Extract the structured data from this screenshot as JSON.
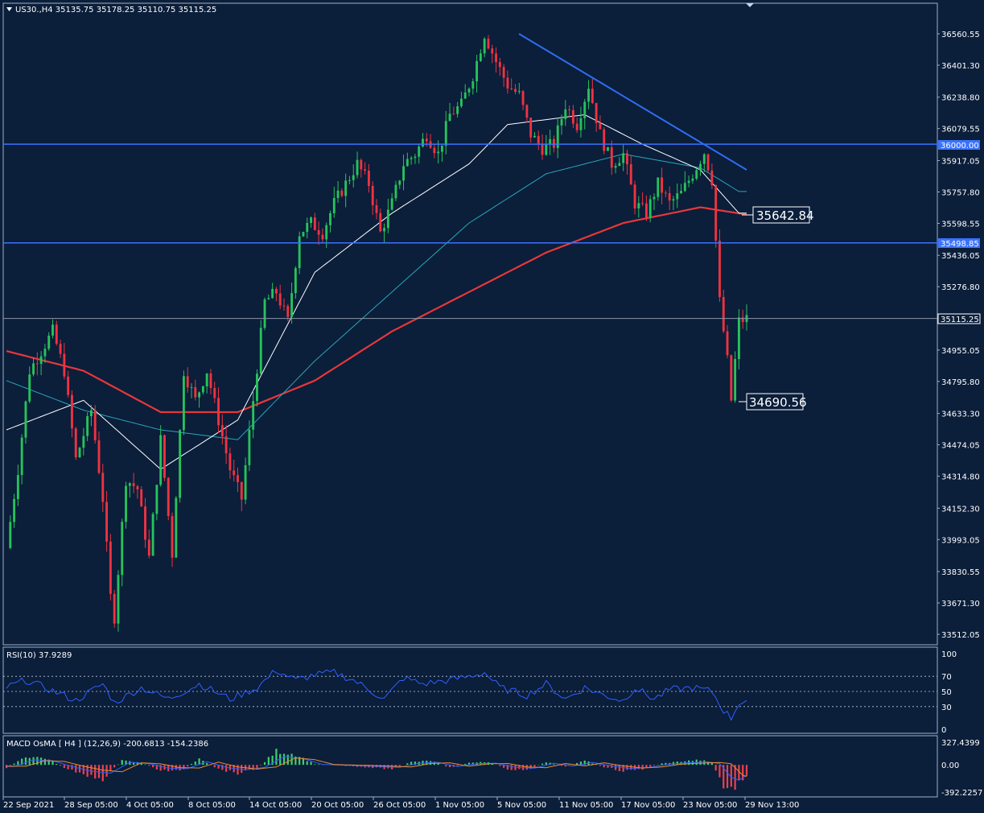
{
  "symbol_header": "US30.,H4  35135.75 35178.25 35110.75 35115.25",
  "colors": {
    "background": "#0b1e3a",
    "axis_text": "#ffffff",
    "candle_up": "#26c35b",
    "candle_down": "#ef3340",
    "trendline": "#2f6cf0",
    "horizontal_line": "#3a72ff",
    "ma_fast": "#ffffff",
    "ma_mid": "#2aa6b8",
    "ma_slow": "#e8373a",
    "rsi_line": "#2f5fff",
    "macd_pos": "#3fd06a",
    "macd_neg": "#f0404c",
    "macd_line": "#2f5fff",
    "signal_line": "#f08a2c"
  },
  "price_axis_labels": [
    "36560.55",
    "36401.30",
    "36238.80",
    "36079.55",
    "35917.05",
    "35757.80",
    "35598.55",
    "35436.05",
    "35276.80",
    "35115.25",
    "34955.05",
    "34795.80",
    "34633.30",
    "34474.05",
    "34314.80",
    "34152.30",
    "33993.05",
    "33830.55",
    "33671.30",
    "33512.05"
  ],
  "level_labels": {
    "resistance": "36000.00",
    "support": "35498.85",
    "current": "35115.25",
    "ma_value": "35642.84",
    "low_value": "34690.56"
  },
  "rsi": {
    "label": "RSI(10) 37.9289",
    "levels": [
      "100",
      "70",
      "50",
      "30",
      "0"
    ]
  },
  "macd": {
    "label": "MACD OsMA [ H4 ] (12,26,9) -200.6813 -154.2386",
    "axis_labels": [
      "327.4399",
      "0.00",
      "-392.2257"
    ]
  },
  "time_axis_labels": [
    "22 Sep 2021",
    "28 Sep 05:00",
    "4 Oct 05:00",
    "8 Oct 05:00",
    "14 Oct 05:00",
    "20 Oct 05:00",
    "26 Oct 05:00",
    "1 Nov 05:00",
    "5 Nov 05:00",
    "11 Nov 05:00",
    "17 Nov 05:00",
    "23 Nov 05:00",
    "29 Nov 13:00"
  ],
  "chart_data": {
    "type": "candlestick",
    "title": "US30.,H4",
    "ylim": [
      33450,
      36700
    ],
    "horizontal_levels": [
      36000.0,
      35498.85,
      35115.25
    ],
    "annotations": [
      {
        "text": "35642.84",
        "value": 35642.84
      },
      {
        "text": "34690.56",
        "value": 34690.56
      }
    ],
    "trendline": {
      "from": {
        "x": "5 Nov 05:00",
        "y": 36560
      },
      "to": {
        "x": "26 Nov",
        "y": 35860
      }
    },
    "price_path": [
      [
        0,
        33950
      ],
      [
        3,
        34350
      ],
      [
        6,
        34850
      ],
      [
        9,
        34950
      ],
      [
        12,
        35050
      ],
      [
        15,
        34850
      ],
      [
        18,
        34400
      ],
      [
        22,
        34650
      ],
      [
        25,
        34200
      ],
      [
        27,
        33700
      ],
      [
        28,
        33600
      ],
      [
        31,
        34300
      ],
      [
        34,
        34250
      ],
      [
        37,
        33900
      ],
      [
        40,
        34500
      ],
      [
        43,
        33920
      ],
      [
        46,
        34850
      ],
      [
        49,
        34700
      ],
      [
        52,
        34850
      ],
      [
        55,
        34600
      ],
      [
        58,
        34350
      ],
      [
        61,
        34200
      ],
      [
        64,
        34700
      ],
      [
        67,
        35200
      ],
      [
        70,
        35250
      ],
      [
        73,
        35100
      ],
      [
        76,
        35550
      ],
      [
        79,
        35600
      ],
      [
        82,
        35550
      ],
      [
        85,
        35700
      ],
      [
        88,
        35800
      ],
      [
        91,
        35900
      ],
      [
        94,
        35800
      ],
      [
        97,
        35550
      ],
      [
        100,
        35700
      ],
      [
        103,
        35900
      ],
      [
        106,
        35950
      ],
      [
        109,
        36050
      ],
      [
        112,
        35950
      ],
      [
        115,
        36150
      ],
      [
        118,
        36200
      ],
      [
        121,
        36350
      ],
      [
        124,
        36560
      ],
      [
        127,
        36420
      ],
      [
        130,
        36300
      ],
      [
        133,
        36250
      ],
      [
        136,
        36050
      ],
      [
        139,
        35980
      ],
      [
        142,
        36000
      ],
      [
        145,
        36200
      ],
      [
        148,
        36100
      ],
      [
        151,
        36300
      ],
      [
        154,
        36050
      ],
      [
        157,
        35900
      ],
      [
        160,
        35950
      ],
      [
        163,
        35700
      ],
      [
        166,
        35650
      ],
      [
        169,
        35800
      ],
      [
        172,
        35700
      ],
      [
        175,
        35750
      ],
      [
        178,
        35850
      ],
      [
        181,
        35960
      ],
      [
        183,
        35820
      ],
      [
        185,
        35200
      ],
      [
        187,
        34900
      ],
      [
        188,
        34700
      ],
      [
        190,
        35100
      ],
      [
        192,
        35115
      ]
    ],
    "ma_fast": [
      [
        0,
        34550
      ],
      [
        20,
        34700
      ],
      [
        40,
        34350
      ],
      [
        60,
        34600
      ],
      [
        80,
        35350
      ],
      [
        100,
        35650
      ],
      [
        120,
        35900
      ],
      [
        130,
        36100
      ],
      [
        150,
        36150
      ],
      [
        165,
        36000
      ],
      [
        180,
        35870
      ],
      [
        190,
        35650
      ]
    ],
    "ma_mid": [
      [
        0,
        34800
      ],
      [
        20,
        34650
      ],
      [
        40,
        34550
      ],
      [
        60,
        34500
      ],
      [
        80,
        34900
      ],
      [
        100,
        35250
      ],
      [
        120,
        35600
      ],
      [
        140,
        35850
      ],
      [
        160,
        35950
      ],
      [
        180,
        35880
      ],
      [
        190,
        35760
      ]
    ],
    "ma_slow": [
      [
        0,
        34950
      ],
      [
        20,
        34850
      ],
      [
        40,
        34640
      ],
      [
        60,
        34640
      ],
      [
        80,
        34800
      ],
      [
        100,
        35050
      ],
      [
        120,
        35250
      ],
      [
        140,
        35450
      ],
      [
        160,
        35600
      ],
      [
        180,
        35680
      ],
      [
        192,
        35642.84
      ]
    ],
    "rsi_values": [
      [
        0,
        55
      ],
      [
        5,
        65
      ],
      [
        10,
        55
      ],
      [
        18,
        38
      ],
      [
        25,
        60
      ],
      [
        28,
        35
      ],
      [
        35,
        55
      ],
      [
        42,
        40
      ],
      [
        50,
        60
      ],
      [
        58,
        40
      ],
      [
        65,
        55
      ],
      [
        70,
        78
      ],
      [
        75,
        65
      ],
      [
        80,
        72
      ],
      [
        85,
        75
      ],
      [
        90,
        65
      ],
      [
        98,
        40
      ],
      [
        103,
        68
      ],
      [
        108,
        60
      ],
      [
        115,
        65
      ],
      [
        120,
        70
      ],
      [
        124,
        75
      ],
      [
        128,
        55
      ],
      [
        135,
        45
      ],
      [
        140,
        60
      ],
      [
        145,
        40
      ],
      [
        150,
        55
      ],
      [
        155,
        45
      ],
      [
        160,
        38
      ],
      [
        163,
        55
      ],
      [
        168,
        40
      ],
      [
        172,
        52
      ],
      [
        178,
        55
      ],
      [
        183,
        50
      ],
      [
        186,
        25
      ],
      [
        188,
        15
      ],
      [
        190,
        35
      ],
      [
        192,
        38
      ]
    ],
    "macd_histogram": [
      [
        0,
        -40
      ],
      [
        5,
        120
      ],
      [
        10,
        100
      ],
      [
        15,
        -40
      ],
      [
        20,
        -150
      ],
      [
        25,
        -200
      ],
      [
        30,
        60
      ],
      [
        35,
        30
      ],
      [
        40,
        -80
      ],
      [
        45,
        -90
      ],
      [
        50,
        80
      ],
      [
        55,
        -60
      ],
      [
        60,
        -120
      ],
      [
        65,
        -60
      ],
      [
        70,
        200
      ],
      [
        75,
        150
      ],
      [
        80,
        10
      ],
      [
        90,
        -20
      ],
      [
        100,
        -60
      ],
      [
        105,
        40
      ],
      [
        110,
        60
      ],
      [
        115,
        -40
      ],
      [
        120,
        30
      ],
      [
        125,
        40
      ],
      [
        130,
        -60
      ],
      [
        135,
        -80
      ],
      [
        140,
        40
      ],
      [
        145,
        -30
      ],
      [
        150,
        60
      ],
      [
        155,
        -30
      ],
      [
        160,
        -90
      ],
      [
        165,
        -60
      ],
      [
        170,
        20
      ],
      [
        175,
        50
      ],
      [
        180,
        70
      ],
      [
        183,
        30
      ],
      [
        186,
        -300
      ],
      [
        188,
        -370
      ],
      [
        190,
        -250
      ],
      [
        192,
        -200
      ]
    ]
  }
}
